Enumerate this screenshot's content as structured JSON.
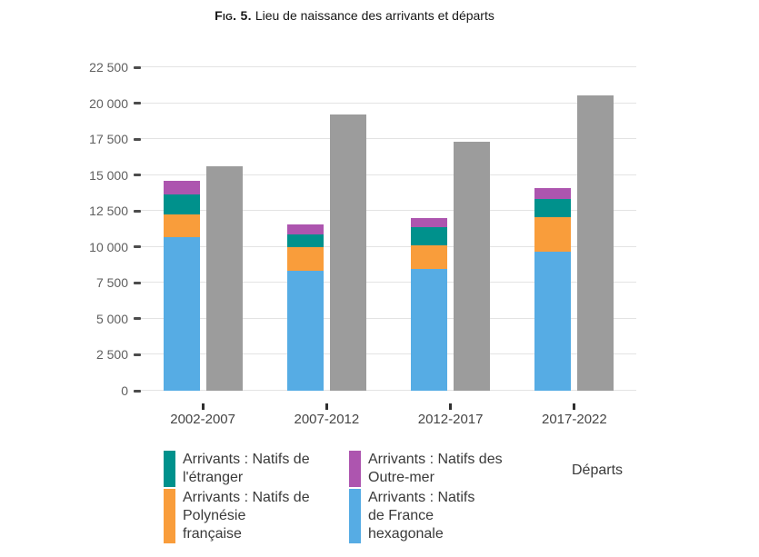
{
  "title": {
    "prefix": "Fig. 5.",
    "text": "Lieu de naissance des arrivants et départs"
  },
  "colors": {
    "france_hexagonale": "#56ACE4",
    "polynesie_francaise": "#F99D3B",
    "etranger": "#00918C",
    "outre_mer": "#AD55AF",
    "departs": "#9C9C9C",
    "gridline": "#E3E3E3",
    "axis_tick": "#4C4C4C"
  },
  "chart_data": {
    "type": "bar",
    "title": "Fig. 5. Lieu de naissance des arrivants et départs",
    "xlabel": "",
    "ylabel": "",
    "categories": [
      "2002-2007",
      "2007-2012",
      "2012-2017",
      "2017-2022"
    ],
    "series": [
      {
        "key": "france-hexagonale",
        "name": "Arrivants : Natifs de France hexagonale",
        "stack": "arrivants",
        "color": "#56ACE4",
        "values": [
          10700,
          8350,
          8450,
          9700
        ]
      },
      {
        "key": "polynesie-francaise",
        "name": "Arrivants : Natifs de Polynésie française",
        "stack": "arrivants",
        "color": "#F99D3B",
        "values": [
          1550,
          1650,
          1650,
          2350
        ]
      },
      {
        "key": "etranger",
        "name": "Arrivants : Natifs de l'étranger",
        "stack": "arrivants",
        "color": "#00918C",
        "values": [
          1400,
          850,
          1300,
          1300
        ]
      },
      {
        "key": "outre-mer",
        "name": "Arrivants : Natifs des Outre-mer",
        "stack": "arrivants",
        "color": "#AD55AF",
        "values": [
          950,
          700,
          600,
          750
        ]
      },
      {
        "key": "departs",
        "name": "Départs",
        "stack": "departs",
        "color": "#9C9C9C",
        "values": [
          15600,
          19200,
          17300,
          20550
        ]
      }
    ],
    "stack_order_bottom_to_top": [
      "france-hexagonale",
      "polynesie-francaise",
      "etranger",
      "outre-mer"
    ],
    "arrivants_totals": [
      14600,
      11550,
      12000,
      14100
    ],
    "ylim": [
      0,
      22500
    ],
    "ytick_step": 2500,
    "ytick_labels": [
      "0",
      "2 500",
      "5 000",
      "7 500",
      "10 000",
      "12 500",
      "15 000",
      "17 500",
      "20 000",
      "22 500"
    ],
    "grid": true,
    "legend_position": "bottom"
  },
  "legend": {
    "columns": [
      {
        "items": [
          {
            "key": "etranger",
            "color": "#00918C",
            "label": "Arrivants : Natifs de\nl'étranger"
          },
          {
            "key": "polynesie-francaise",
            "color": "#F99D3B",
            "label": "Arrivants : Natifs de\nPolynésie\nfrançaise"
          }
        ]
      },
      {
        "items": [
          {
            "key": "outre-mer",
            "color": "#AD55AF",
            "label": "Arrivants : Natifs des\nOutre-mer"
          },
          {
            "key": "france-hexagonale",
            "color": "#56ACE4",
            "label": "Arrivants : Natifs\nde France\nhexagonale"
          }
        ]
      },
      {
        "items": [
          {
            "key": "departs",
            "color": "#9C9C9C",
            "label": "Départs"
          }
        ]
      }
    ]
  }
}
